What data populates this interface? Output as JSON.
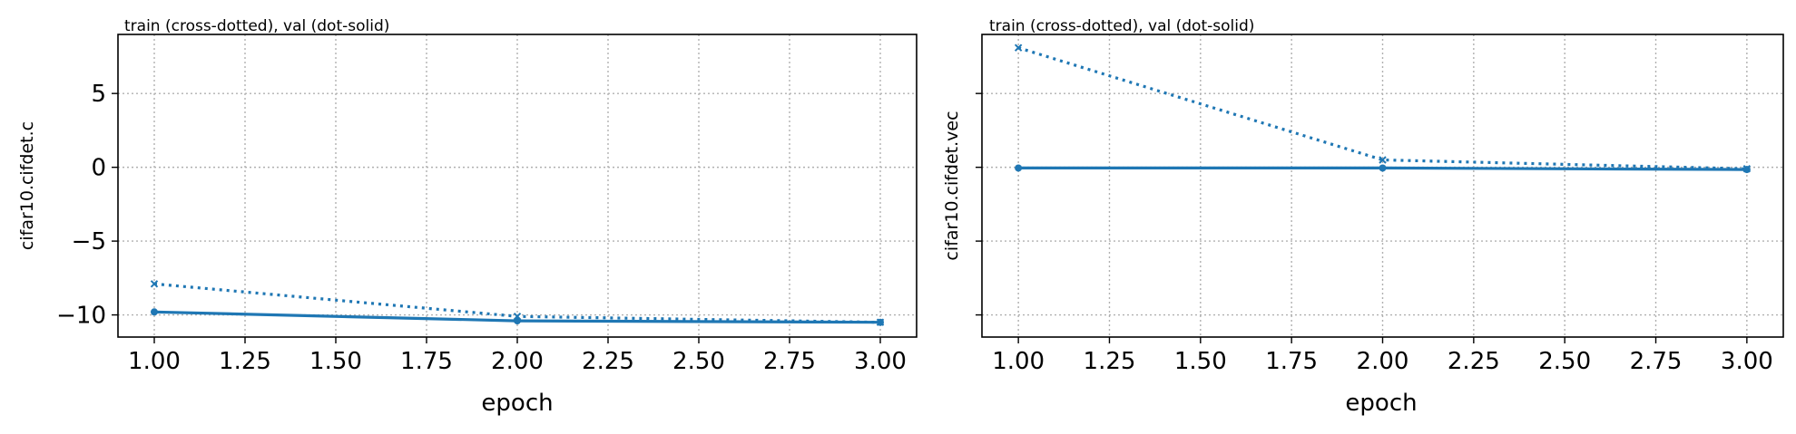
{
  "chart_data": [
    {
      "type": "line",
      "title": "train (cross-dotted), val (dot-solid)",
      "xlabel": "epoch",
      "ylabel": "cifar10.cifdet.c",
      "xlim": [
        0.9,
        3.1
      ],
      "ylim": [
        -11.5,
        9.0
      ],
      "xticks": [
        "1.00",
        "1.25",
        "1.50",
        "1.75",
        "2.00",
        "2.25",
        "2.50",
        "2.75",
        "3.00"
      ],
      "yticks": [
        "5",
        "0",
        "−5",
        "−10"
      ],
      "show_ytick_labels": true,
      "grid": true,
      "color": "#1f77b4",
      "x": [
        1,
        2,
        3
      ],
      "series": [
        {
          "style": "cross-dotted",
          "values": [
            -7.9,
            -10.1,
            -10.5
          ]
        },
        {
          "style": "dot-solid",
          "values": [
            -9.8,
            -10.4,
            -10.5
          ]
        }
      ]
    },
    {
      "type": "line",
      "title": "train (cross-dotted), val (dot-solid)",
      "xlabel": "epoch",
      "ylabel": "cifar10.cifdet.vec",
      "xlim": [
        0.9,
        3.1
      ],
      "ylim": [
        -11.5,
        9.0
      ],
      "xticks": [
        "1.00",
        "1.25",
        "1.50",
        "1.75",
        "2.00",
        "2.25",
        "2.50",
        "2.75",
        "3.00"
      ],
      "yticks": [
        "5",
        "0",
        "−5",
        "−10"
      ],
      "show_ytick_labels": false,
      "grid": true,
      "color": "#1f77b4",
      "x": [
        1,
        2,
        3
      ],
      "series": [
        {
          "style": "cross-dotted",
          "values": [
            8.1,
            0.5,
            -0.1
          ]
        },
        {
          "style": "dot-solid",
          "values": [
            -0.05,
            -0.05,
            -0.15
          ]
        }
      ]
    }
  ]
}
